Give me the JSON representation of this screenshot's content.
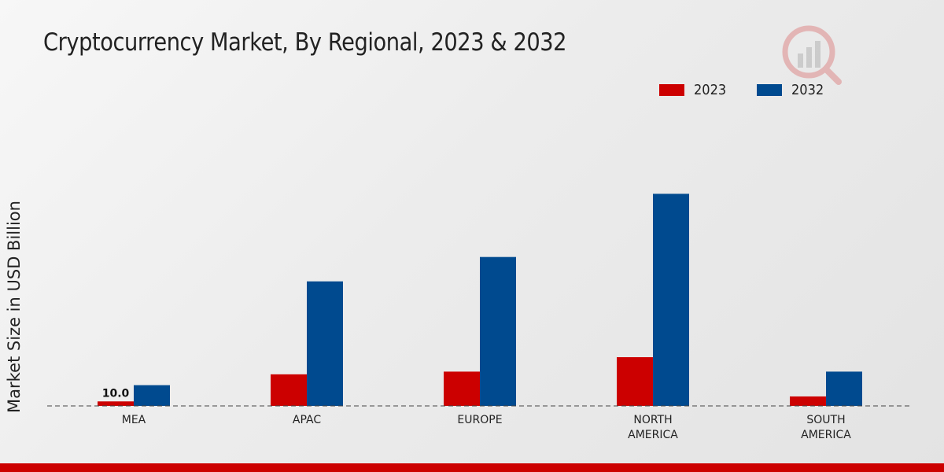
{
  "title": "Cryptocurrency Market, By Regional, 2023 & 2032",
  "colors": {
    "series_2023": "#cc0000",
    "series_2032": "#004a8f",
    "footer": "#cc0000"
  },
  "legend": [
    {
      "label": "2023",
      "color": "#cc0000"
    },
    {
      "label": "2032",
      "color": "#004a8f"
    }
  ],
  "chart_data": {
    "type": "bar",
    "title": "Cryptocurrency Market, By Regional, 2023 & 2032",
    "xlabel": "",
    "ylabel": "Market Size in USD Billion",
    "categories": [
      "MEA",
      "APAC",
      "EUROPE",
      "NORTH AMERICA",
      "SOUTH AMERICA"
    ],
    "category_lines": [
      [
        "MEA"
      ],
      [
        "APAC"
      ],
      [
        "EUROPE"
      ],
      [
        "NORTH",
        "AMERICA"
      ],
      [
        "SOUTH",
        "AMERICA"
      ]
    ],
    "series": [
      {
        "name": "2023",
        "color": "#cc0000",
        "values": [
          10.0,
          70.0,
          76.0,
          108.0,
          21.0
        ]
      },
      {
        "name": "2032",
        "color": "#004a8f",
        "values": [
          46.0,
          276.0,
          330.0,
          470.0,
          76.0
        ]
      }
    ],
    "data_labels": [
      {
        "series": 0,
        "index": 0,
        "text": "10.0"
      }
    ],
    "ylim": [
      0,
      760
    ],
    "grid": false,
    "baseline_style": "dashed",
    "legend_position": "top-right"
  }
}
